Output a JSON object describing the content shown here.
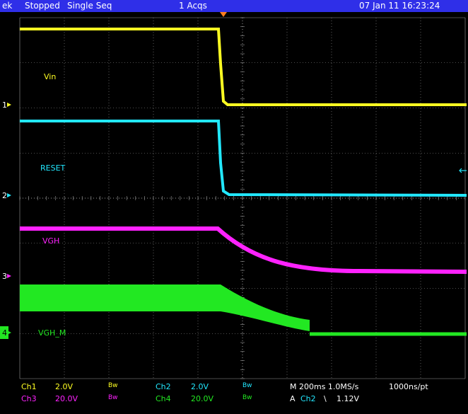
{
  "header": {
    "brand": "ek",
    "state": "Stopped",
    "mode": "Single Seq",
    "acqs": "1 Acqs",
    "datetime": "07 Jan 11 16:23:24"
  },
  "colors": {
    "header_bg": "#2f2fe8",
    "grid": "#9a9a9a",
    "ch1": "#ffff22",
    "ch2": "#22e8ff",
    "ch3": "#ff22ff",
    "ch4": "#22e822",
    "trigger": "#ff7f1f",
    "text_white": "#ffffff"
  },
  "traces": [
    {
      "id": "ch1",
      "marker": "1",
      "name": "Vin"
    },
    {
      "id": "ch2",
      "marker": "2",
      "name": "RESET"
    },
    {
      "id": "ch3",
      "marker": "3",
      "name": "VGH"
    },
    {
      "id": "ch4",
      "marker": "4",
      "name": "VGH_M"
    }
  ],
  "channels": {
    "ch1": {
      "label": "Ch1",
      "scale": "2.0V",
      "bw": "Bw"
    },
    "ch2": {
      "label": "Ch2",
      "scale": "2.0V",
      "bw": "Bw"
    },
    "ch3": {
      "label": "Ch3",
      "scale": "20.0V",
      "bw": "Bw"
    },
    "ch4": {
      "label": "Ch4",
      "scale": "20.0V",
      "bw": "Bw"
    }
  },
  "timebase": {
    "main": "M 200ms 1.0MS/s",
    "record": "1000ns/pt"
  },
  "trigger": {
    "source_prefix": "A",
    "source": "Ch2",
    "slope_icon": "falling-edge-icon",
    "slope": "\\",
    "level": "1.12V"
  }
}
